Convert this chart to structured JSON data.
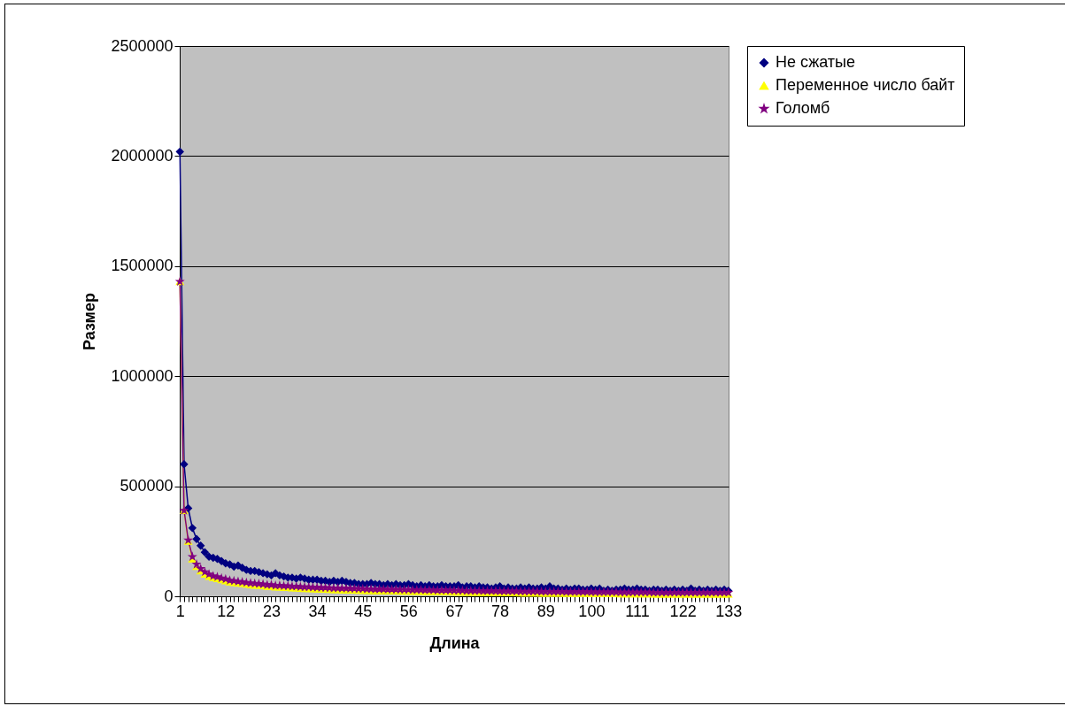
{
  "chart_data": {
    "type": "line",
    "xlabel": "Длина",
    "ylabel": "Размер",
    "categories": [
      "1",
      null,
      null,
      null,
      null,
      null,
      null,
      null,
      null,
      null,
      null,
      "12",
      null,
      null,
      null,
      null,
      null,
      null,
      null,
      null,
      null,
      null,
      "23",
      null,
      null,
      null,
      null,
      null,
      null,
      null,
      null,
      null,
      null,
      "34",
      null,
      null,
      null,
      null,
      null,
      null,
      null,
      null,
      null,
      null,
      "45",
      null,
      null,
      null,
      null,
      null,
      null,
      null,
      null,
      null,
      null,
      "56",
      null,
      null,
      null,
      null,
      null,
      null,
      null,
      null,
      null,
      null,
      "67",
      null,
      null,
      null,
      null,
      null,
      null,
      null,
      null,
      null,
      null,
      "78",
      null,
      null,
      null,
      null,
      null,
      null,
      null,
      null,
      null,
      null,
      "89",
      null,
      null,
      null,
      null,
      null,
      null,
      null,
      null,
      null,
      null,
      "100",
      null,
      null,
      null,
      null,
      null,
      null,
      null,
      null,
      null,
      null,
      "111",
      null,
      null,
      null,
      null,
      null,
      null,
      null,
      null,
      null,
      null,
      "122",
      null,
      null,
      null,
      null,
      null,
      null,
      null,
      null,
      null,
      null,
      "133"
    ],
    "series": [
      {
        "name": "Не сжатые",
        "color": "#000080",
        "marker": "diamond",
        "values": [
          2020000,
          600000,
          400000,
          310000,
          260000,
          230000,
          200000,
          180000,
          175000,
          170000,
          160000,
          150000,
          145000,
          135000,
          140000,
          130000,
          120000,
          115000,
          115000,
          110000,
          105000,
          100000,
          95000,
          105000,
          95000,
          90000,
          85000,
          85000,
          80000,
          85000,
          80000,
          75000,
          75000,
          75000,
          70000,
          70000,
          65000,
          70000,
          65000,
          70000,
          65000,
          60000,
          60000,
          55000,
          55000,
          55000,
          60000,
          55000,
          55000,
          50000,
          55000,
          50000,
          55000,
          50000,
          50000,
          55000,
          50000,
          45000,
          50000,
          45000,
          50000,
          45000,
          45000,
          50000,
          45000,
          45000,
          45000,
          50000,
          40000,
          45000,
          45000,
          40000,
          45000,
          40000,
          40000,
          35000,
          40000,
          45000,
          35000,
          40000,
          35000,
          35000,
          40000,
          35000,
          40000,
          35000,
          35000,
          40000,
          35000,
          45000,
          35000,
          35000,
          30000,
          35000,
          30000,
          35000,
          35000,
          30000,
          30000,
          35000,
          30000,
          35000,
          25000,
          30000,
          25000,
          30000,
          30000,
          35000,
          30000,
          30000,
          35000,
          30000,
          30000,
          25000,
          30000,
          30000,
          25000,
          30000,
          25000,
          30000,
          25000,
          30000,
          25000,
          35000,
          25000,
          30000,
          25000,
          30000,
          25000,
          30000,
          25000,
          30000,
          25000
        ]
      },
      {
        "name": "Переменное число байт",
        "color": "#ffff00",
        "marker": "triangle",
        "values": [
          1430000,
          390000,
          250000,
          170000,
          135000,
          115000,
          100000,
          90000,
          85000,
          80000,
          75000,
          70000,
          65000,
          62000,
          60000,
          58000,
          55000,
          52000,
          50000,
          50000,
          48000,
          45000,
          45000,
          42000,
          42000,
          40000,
          40000,
          38000,
          38000,
          36000,
          35000,
          35000,
          34000,
          33000,
          32000,
          32000,
          31000,
          30000,
          30000,
          29000,
          29000,
          28000,
          28000,
          27000,
          27000,
          26000,
          26000,
          25000,
          25000,
          25000,
          24000,
          24000,
          24000,
          23000,
          23000,
          23000,
          22000,
          22000,
          22000,
          21000,
          21000,
          21000,
          20000,
          20000,
          20000,
          20000,
          19000,
          19000,
          19000,
          18000,
          18000,
          18000,
          18000,
          17000,
          17000,
          17000,
          17000,
          16000,
          16000,
          16000,
          16000,
          16000,
          15000,
          15000,
          15000,
          15000,
          15000,
          14000,
          14000,
          14000,
          14000,
          14000,
          14000,
          13000,
          13000,
          13000,
          13000,
          13000,
          13000,
          12000,
          12000,
          12000,
          12000,
          12000,
          12000,
          12000,
          11000,
          11000,
          11000,
          11000,
          11000,
          11000,
          11000,
          11000,
          10000,
          10000,
          10000,
          10000,
          10000,
          10000,
          10000,
          10000,
          10000,
          10000,
          10000,
          10000,
          10000,
          10000,
          10000,
          10000,
          10000,
          10000,
          10000
        ]
      },
      {
        "name": "Голомб",
        "color": "#800080",
        "marker": "star",
        "values": [
          1430000,
          390000,
          255000,
          180000,
          145000,
          125000,
          110000,
          100000,
          92000,
          88000,
          82000,
          78000,
          72000,
          70000,
          67000,
          65000,
          62000,
          60000,
          58000,
          57000,
          55000,
          52000,
          52000,
          49000,
          49000,
          47000,
          47000,
          45000,
          45000,
          43000,
          42000,
          42000,
          41000,
          40000,
          39000,
          39000,
          38000,
          37000,
          37000,
          36000,
          36000,
          35000,
          35000,
          34000,
          34000,
          33000,
          33000,
          32000,
          32000,
          32000,
          31000,
          31000,
          31000,
          30000,
          30000,
          30000,
          29000,
          29000,
          29000,
          28000,
          28000,
          28000,
          27000,
          27000,
          27000,
          27000,
          26000,
          26000,
          26000,
          25000,
          25000,
          25000,
          25000,
          24000,
          24000,
          24000,
          24000,
          23000,
          23000,
          23000,
          23000,
          23000,
          22000,
          22000,
          22000,
          22000,
          22000,
          21000,
          21000,
          21000,
          21000,
          21000,
          21000,
          20000,
          20000,
          20000,
          20000,
          20000,
          20000,
          19000,
          19000,
          19000,
          19000,
          19000,
          19000,
          19000,
          18000,
          18000,
          18000,
          18000,
          18000,
          18000,
          18000,
          18000,
          17000,
          17000,
          17000,
          17000,
          17000,
          17000,
          17000,
          17000,
          17000,
          17000,
          17000,
          17000,
          17000,
          17000,
          17000,
          17000,
          17000,
          17000,
          17000
        ]
      }
    ],
    "ylim": [
      0,
      2500000
    ],
    "yticks": [
      0,
      500000,
      1000000,
      1500000,
      2000000,
      2500000
    ],
    "grid": "y",
    "legend": "right",
    "line_style": "solid"
  }
}
